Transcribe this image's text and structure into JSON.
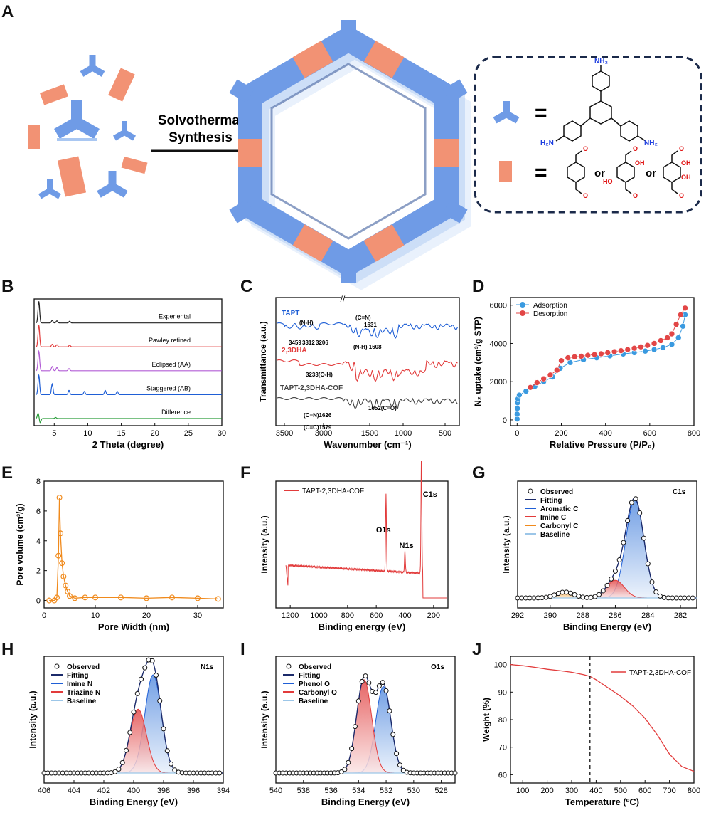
{
  "panel_labels": [
    "A",
    "B",
    "C",
    "D",
    "E",
    "F",
    "G",
    "H",
    "I",
    "J"
  ],
  "colors": {
    "blue": "#6f9be6",
    "blue_light": "#a9c7f2",
    "blue_dark": "#3f5f9e",
    "salmon": "#f29274",
    "salmon_dark": "#c9604a",
    "navy": "#1b2a4a",
    "red": "#e23b3b",
    "orange": "#f08a1c",
    "green": "#2a9d3a",
    "purple": "#b35fd6",
    "black": "#222222"
  },
  "schematic": {
    "arrow_label_line1": "Solvothermal",
    "arrow_label_line2": "Synthesis",
    "equals": "=",
    "or": "or",
    "nh2": "NH₂",
    "h2n": "H₂N",
    "oh": "OH",
    "ho": "HO"
  },
  "chart_data": [
    {
      "id": "B",
      "type": "line",
      "xlabel": "2 Theta (degree)",
      "ylabel": "",
      "xlim": [
        2,
        30
      ],
      "xticks": [
        5,
        10,
        15,
        20,
        25,
        30
      ],
      "series": [
        {
          "name": "Experiental",
          "color": "#222222",
          "offset": 4,
          "peaks": [
            [
              2.7,
              1.0
            ],
            [
              4.7,
              0.12
            ],
            [
              5.4,
              0.1
            ],
            [
              7.3,
              0.08
            ]
          ]
        },
        {
          "name": "Pawley refined",
          "color": "#e23b3b",
          "offset": 3,
          "peaks": [
            [
              2.7,
              1.0
            ],
            [
              4.7,
              0.12
            ],
            [
              5.4,
              0.1
            ],
            [
              7.3,
              0.08
            ]
          ]
        },
        {
          "name": "Eclipsed (AA)",
          "color": "#b35fd6",
          "offset": 2,
          "peaks": [
            [
              2.7,
              0.9
            ],
            [
              4.7,
              0.2
            ],
            [
              5.4,
              0.15
            ],
            [
              7.2,
              0.1
            ]
          ]
        },
        {
          "name": "Staggered (AB)",
          "color": "#1f5fd6",
          "offset": 1,
          "peaks": [
            [
              2.7,
              0.9
            ],
            [
              4.7,
              0.5
            ],
            [
              7.2,
              0.2
            ],
            [
              9.5,
              0.15
            ],
            [
              12.6,
              0.2
            ],
            [
              14.4,
              0.15
            ]
          ]
        },
        {
          "name": "Difference",
          "color": "#2a9d3a",
          "offset": 0,
          "peaks": [
            [
              2.6,
              0.25
            ],
            [
              2.9,
              -0.2
            ],
            [
              5.2,
              0.05
            ]
          ]
        }
      ]
    },
    {
      "id": "C",
      "type": "line",
      "xlabel": "Wavenumber (cm⁻¹)",
      "ylabel": "Transmittance (a.u.)",
      "xticks": [
        "3500",
        "3000",
        "1500",
        "1000",
        "500"
      ],
      "series": [
        {
          "name": "TAPT",
          "color": "#1f5fd6"
        },
        {
          "name": "2,3DHA",
          "color": "#e23b3b"
        },
        {
          "name": "TAPT-2,3DHA-COF",
          "color": "#444444"
        }
      ],
      "annotations": [
        "(N-H)",
        "3459",
        "3312",
        "3206",
        "(C=N)",
        "1631",
        "(N-H) 1608",
        "3233(O-H)",
        "1652(C=O)",
        "(C=N)1626",
        "(C=C)1579"
      ]
    },
    {
      "id": "D",
      "type": "scatter",
      "xlabel": "Relative Pressure (P/P₀)",
      "ylabel": "N₂ uptake (cm³/g STP)",
      "xlim": [
        -30,
        800
      ],
      "ylim": [
        -300,
        6400
      ],
      "xticks": [
        0,
        200,
        400,
        600,
        800
      ],
      "yticks": [
        0,
        2000,
        4000,
        6000
      ],
      "series": [
        {
          "name": "Adsorption",
          "color": "#3a9ae0",
          "points": [
            [
              0,
              50
            ],
            [
              0,
              300
            ],
            [
              1,
              600
            ],
            [
              2,
              900
            ],
            [
              4,
              1100
            ],
            [
              10,
              1300
            ],
            [
              40,
              1500
            ],
            [
              80,
              1750
            ],
            [
              120,
              2000
            ],
            [
              160,
              2250
            ],
            [
              195,
              2700
            ],
            [
              240,
              3000
            ],
            [
              300,
              3150
            ],
            [
              360,
              3250
            ],
            [
              420,
              3350
            ],
            [
              480,
              3450
            ],
            [
              530,
              3520
            ],
            [
              580,
              3600
            ],
            [
              620,
              3680
            ],
            [
              660,
              3780
            ],
            [
              700,
              3950
            ],
            [
              730,
              4300
            ],
            [
              750,
              4900
            ],
            [
              760,
              5500
            ]
          ]
        },
        {
          "name": "Desorption",
          "color": "#e24646",
          "points": [
            [
              760,
              5850
            ],
            [
              740,
              5500
            ],
            [
              720,
              5000
            ],
            [
              700,
              4500
            ],
            [
              680,
              4300
            ],
            [
              650,
              4150
            ],
            [
              620,
              4000
            ],
            [
              590,
              3900
            ],
            [
              560,
              3820
            ],
            [
              530,
              3750
            ],
            [
              500,
              3680
            ],
            [
              470,
              3620
            ],
            [
              440,
              3570
            ],
            [
              410,
              3520
            ],
            [
              380,
              3460
            ],
            [
              350,
              3420
            ],
            [
              320,
              3380
            ],
            [
              290,
              3330
            ],
            [
              260,
              3300
            ],
            [
              230,
              3250
            ],
            [
              200,
              3100
            ],
            [
              180,
              2600
            ],
            [
              150,
              2350
            ],
            [
              120,
              2150
            ],
            [
              90,
              1950
            ],
            [
              60,
              1700
            ]
          ]
        }
      ]
    },
    {
      "id": "E",
      "type": "line",
      "xlabel": "Pore Width (nm)",
      "ylabel": "Pore volume (cm³/g)",
      "xlim": [
        0,
        35
      ],
      "ylim": [
        -0.5,
        8
      ],
      "xticks": [
        0,
        10,
        20,
        30
      ],
      "yticks": [
        0,
        2,
        4,
        6,
        8
      ],
      "series": [
        {
          "name": "",
          "color": "#f08a1c",
          "points": [
            [
              1,
              0
            ],
            [
              2,
              0
            ],
            [
              2.5,
              0.2
            ],
            [
              2.8,
              3.0
            ],
            [
              3.0,
              6.9
            ],
            [
              3.2,
              4.5
            ],
            [
              3.5,
              2.5
            ],
            [
              3.8,
              1.6
            ],
            [
              4.2,
              1.0
            ],
            [
              4.6,
              0.6
            ],
            [
              5.0,
              0.3
            ],
            [
              6,
              0.15
            ],
            [
              8,
              0.2
            ],
            [
              10,
              0.2
            ],
            [
              15,
              0.2
            ],
            [
              20,
              0.15
            ],
            [
              25,
              0.2
            ],
            [
              30,
              0.15
            ],
            [
              34,
              0.1
            ]
          ]
        }
      ]
    },
    {
      "id": "F",
      "type": "line",
      "xlabel": "Binding energy (eV)",
      "ylabel": "Intensity (a.u.)",
      "xlim": [
        1300,
        100
      ],
      "xticks": [
        1200,
        1000,
        800,
        600,
        400,
        200
      ],
      "series": [
        {
          "name": "TAPT-2,3DHA-COF",
          "color": "#e23b3b"
        }
      ],
      "annotations": [
        "C1s",
        "O1s",
        "N1s"
      ]
    },
    {
      "id": "G",
      "type": "line",
      "xlabel": "Binding Energy (eV)",
      "ylabel": "Intensity (a.u.)",
      "xlim": [
        292,
        281
      ],
      "xticks": [
        292,
        290,
        288,
        286,
        284,
        282
      ],
      "title": "C1s",
      "series": [
        {
          "name": "Observed"
        },
        {
          "name": "Fitting"
        },
        {
          "name": "Aromatic C",
          "center": 284.8,
          "height": 1.0
        },
        {
          "name": "Imine C",
          "center": 286.0,
          "height": 0.18
        },
        {
          "name": "Carbonyl C",
          "center": 289.1,
          "height": 0.06
        },
        {
          "name": "Baseline"
        }
      ]
    },
    {
      "id": "H",
      "type": "line",
      "xlabel": "Binding Energy (eV)",
      "ylabel": "Intensity (a.u.)",
      "xlim": [
        406,
        394
      ],
      "xticks": [
        406,
        404,
        402,
        400,
        398,
        396,
        394
      ],
      "title": "N1s",
      "series": [
        {
          "name": "Observed"
        },
        {
          "name": "Fitting"
        },
        {
          "name": "Imine N",
          "center": 398.7,
          "height": 1.0
        },
        {
          "name": "Triazine N",
          "center": 399.7,
          "height": 0.65
        },
        {
          "name": "Baseline"
        }
      ]
    },
    {
      "id": "I",
      "type": "line",
      "xlabel": "Binding Energy (eV)",
      "ylabel": "Intensity (a.u.)",
      "xlim": [
        540,
        527
      ],
      "xticks": [
        540,
        538,
        536,
        534,
        532,
        530,
        528
      ],
      "title": "O1s",
      "series": [
        {
          "name": "Observed"
        },
        {
          "name": "Fitting"
        },
        {
          "name": "Phenol O",
          "center": 532.2,
          "height": 0.88
        },
        {
          "name": "Carbonyl O",
          "center": 533.6,
          "height": 0.95
        },
        {
          "name": "Baseline"
        }
      ]
    },
    {
      "id": "J",
      "type": "line",
      "xlabel": "Temperature (ºC)",
      "ylabel": "Weight (%)",
      "xlim": [
        50,
        800
      ],
      "ylim": [
        57,
        103
      ],
      "xticks": [
        100,
        200,
        300,
        400,
        500,
        600,
        700,
        800
      ],
      "yticks": [
        60,
        70,
        80,
        90,
        100
      ],
      "vline": 375,
      "series": [
        {
          "name": "TAPT-2,3DHA-COF",
          "color": "#e23b3b",
          "points": [
            [
              50,
              100
            ],
            [
              100,
              99.6
            ],
            [
              150,
              99.0
            ],
            [
              200,
              98.3
            ],
            [
              250,
              97.8
            ],
            [
              300,
              97.2
            ],
            [
              350,
              96.3
            ],
            [
              375,
              95.7
            ],
            [
              400,
              94.5
            ],
            [
              450,
              91.5
            ],
            [
              500,
              88.5
            ],
            [
              550,
              85.0
            ],
            [
              600,
              80.5
            ],
            [
              650,
              74.5
            ],
            [
              700,
              67.5
            ],
            [
              750,
              63.0
            ],
            [
              800,
              61.2
            ]
          ]
        }
      ]
    }
  ]
}
